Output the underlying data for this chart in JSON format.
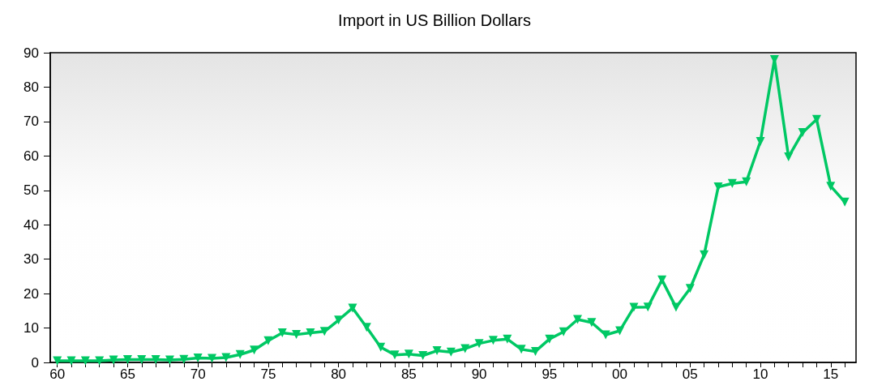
{
  "chart_data": {
    "type": "line",
    "title": "Import in US Billion Dollars",
    "x": [
      1960,
      1961,
      1962,
      1963,
      1964,
      1965,
      1966,
      1967,
      1968,
      1969,
      1970,
      1971,
      1972,
      1973,
      1974,
      1975,
      1976,
      1977,
      1978,
      1979,
      1980,
      1981,
      1982,
      1983,
      1984,
      1985,
      1986,
      1987,
      1988,
      1989,
      1990,
      1991,
      1992,
      1993,
      1994,
      1995,
      1996,
      1997,
      1998,
      1999,
      2000,
      2001,
      2002,
      2003,
      2004,
      2005,
      2006,
      2007,
      2008,
      2009,
      2010,
      2011,
      2012,
      2013,
      2014,
      2015,
      2016
    ],
    "series": [
      {
        "color": "#00c864",
        "values": [
          0.5,
          0.5,
          0.5,
          0.5,
          0.7,
          0.8,
          0.8,
          0.8,
          0.7,
          0.9,
          1.3,
          1.2,
          1.4,
          2.3,
          3.6,
          6.3,
          8.6,
          8.1,
          8.6,
          9.0,
          12.3,
          15.8,
          10.2,
          4.4,
          2.2,
          2.4,
          2.0,
          3.4,
          3.0,
          4.0,
          5.5,
          6.4,
          6.8,
          3.8,
          3.2,
          6.8,
          8.9,
          12.5,
          11.6,
          8.0,
          9.2,
          16.0,
          16.1,
          24.0,
          16.0,
          21.5,
          31.3,
          51.0,
          52.0,
          52.5,
          64.2,
          88.0,
          59.7,
          66.8,
          70.6,
          51.2,
          46.6
        ]
      }
    ],
    "xlim": [
      1959.5,
      2016.8
    ],
    "xticks": [
      {
        "value": 1960,
        "label": "60"
      },
      {
        "value": 1961,
        "label": null
      },
      {
        "value": 1962,
        "label": null
      },
      {
        "value": 1963,
        "label": null
      },
      {
        "value": 1964,
        "label": null
      },
      {
        "value": 1965,
        "label": "65"
      },
      {
        "value": 1966,
        "label": null
      },
      {
        "value": 1967,
        "label": null
      },
      {
        "value": 1968,
        "label": null
      },
      {
        "value": 1969,
        "label": null
      },
      {
        "value": 1970,
        "label": "70"
      },
      {
        "value": 1971,
        "label": null
      },
      {
        "value": 1972,
        "label": null
      },
      {
        "value": 1973,
        "label": null
      },
      {
        "value": 1974,
        "label": null
      },
      {
        "value": 1975,
        "label": "75"
      },
      {
        "value": 1976,
        "label": null
      },
      {
        "value": 1977,
        "label": null
      },
      {
        "value": 1978,
        "label": null
      },
      {
        "value": 1979,
        "label": null
      },
      {
        "value": 1980,
        "label": "80"
      },
      {
        "value": 1981,
        "label": null
      },
      {
        "value": 1982,
        "label": null
      },
      {
        "value": 1983,
        "label": null
      },
      {
        "value": 1984,
        "label": null
      },
      {
        "value": 1985,
        "label": "85"
      },
      {
        "value": 1986,
        "label": null
      },
      {
        "value": 1987,
        "label": null
      },
      {
        "value": 1988,
        "label": null
      },
      {
        "value": 1989,
        "label": null
      },
      {
        "value": 1990,
        "label": "90"
      },
      {
        "value": 1991,
        "label": null
      },
      {
        "value": 1992,
        "label": null
      },
      {
        "value": 1993,
        "label": null
      },
      {
        "value": 1994,
        "label": null
      },
      {
        "value": 1995,
        "label": "95"
      },
      {
        "value": 1996,
        "label": null
      },
      {
        "value": 1997,
        "label": null
      },
      {
        "value": 1998,
        "label": null
      },
      {
        "value": 1999,
        "label": null
      },
      {
        "value": 2000,
        "label": "00"
      },
      {
        "value": 2001,
        "label": null
      },
      {
        "value": 2002,
        "label": null
      },
      {
        "value": 2003,
        "label": null
      },
      {
        "value": 2004,
        "label": null
      },
      {
        "value": 2005,
        "label": "05"
      },
      {
        "value": 2006,
        "label": null
      },
      {
        "value": 2007,
        "label": null
      },
      {
        "value": 2008,
        "label": null
      },
      {
        "value": 2009,
        "label": null
      },
      {
        "value": 2010,
        "label": "10"
      },
      {
        "value": 2011,
        "label": null
      },
      {
        "value": 2012,
        "label": null
      },
      {
        "value": 2013,
        "label": null
      },
      {
        "value": 2014,
        "label": null
      },
      {
        "value": 2015,
        "label": "15"
      },
      {
        "value": 2016,
        "label": null
      }
    ],
    "ylim": [
      0,
      90
    ],
    "yticks": [
      0,
      10,
      20,
      30,
      40,
      50,
      60,
      70,
      80,
      90
    ],
    "marker": "triangle",
    "line_style": "solid"
  }
}
